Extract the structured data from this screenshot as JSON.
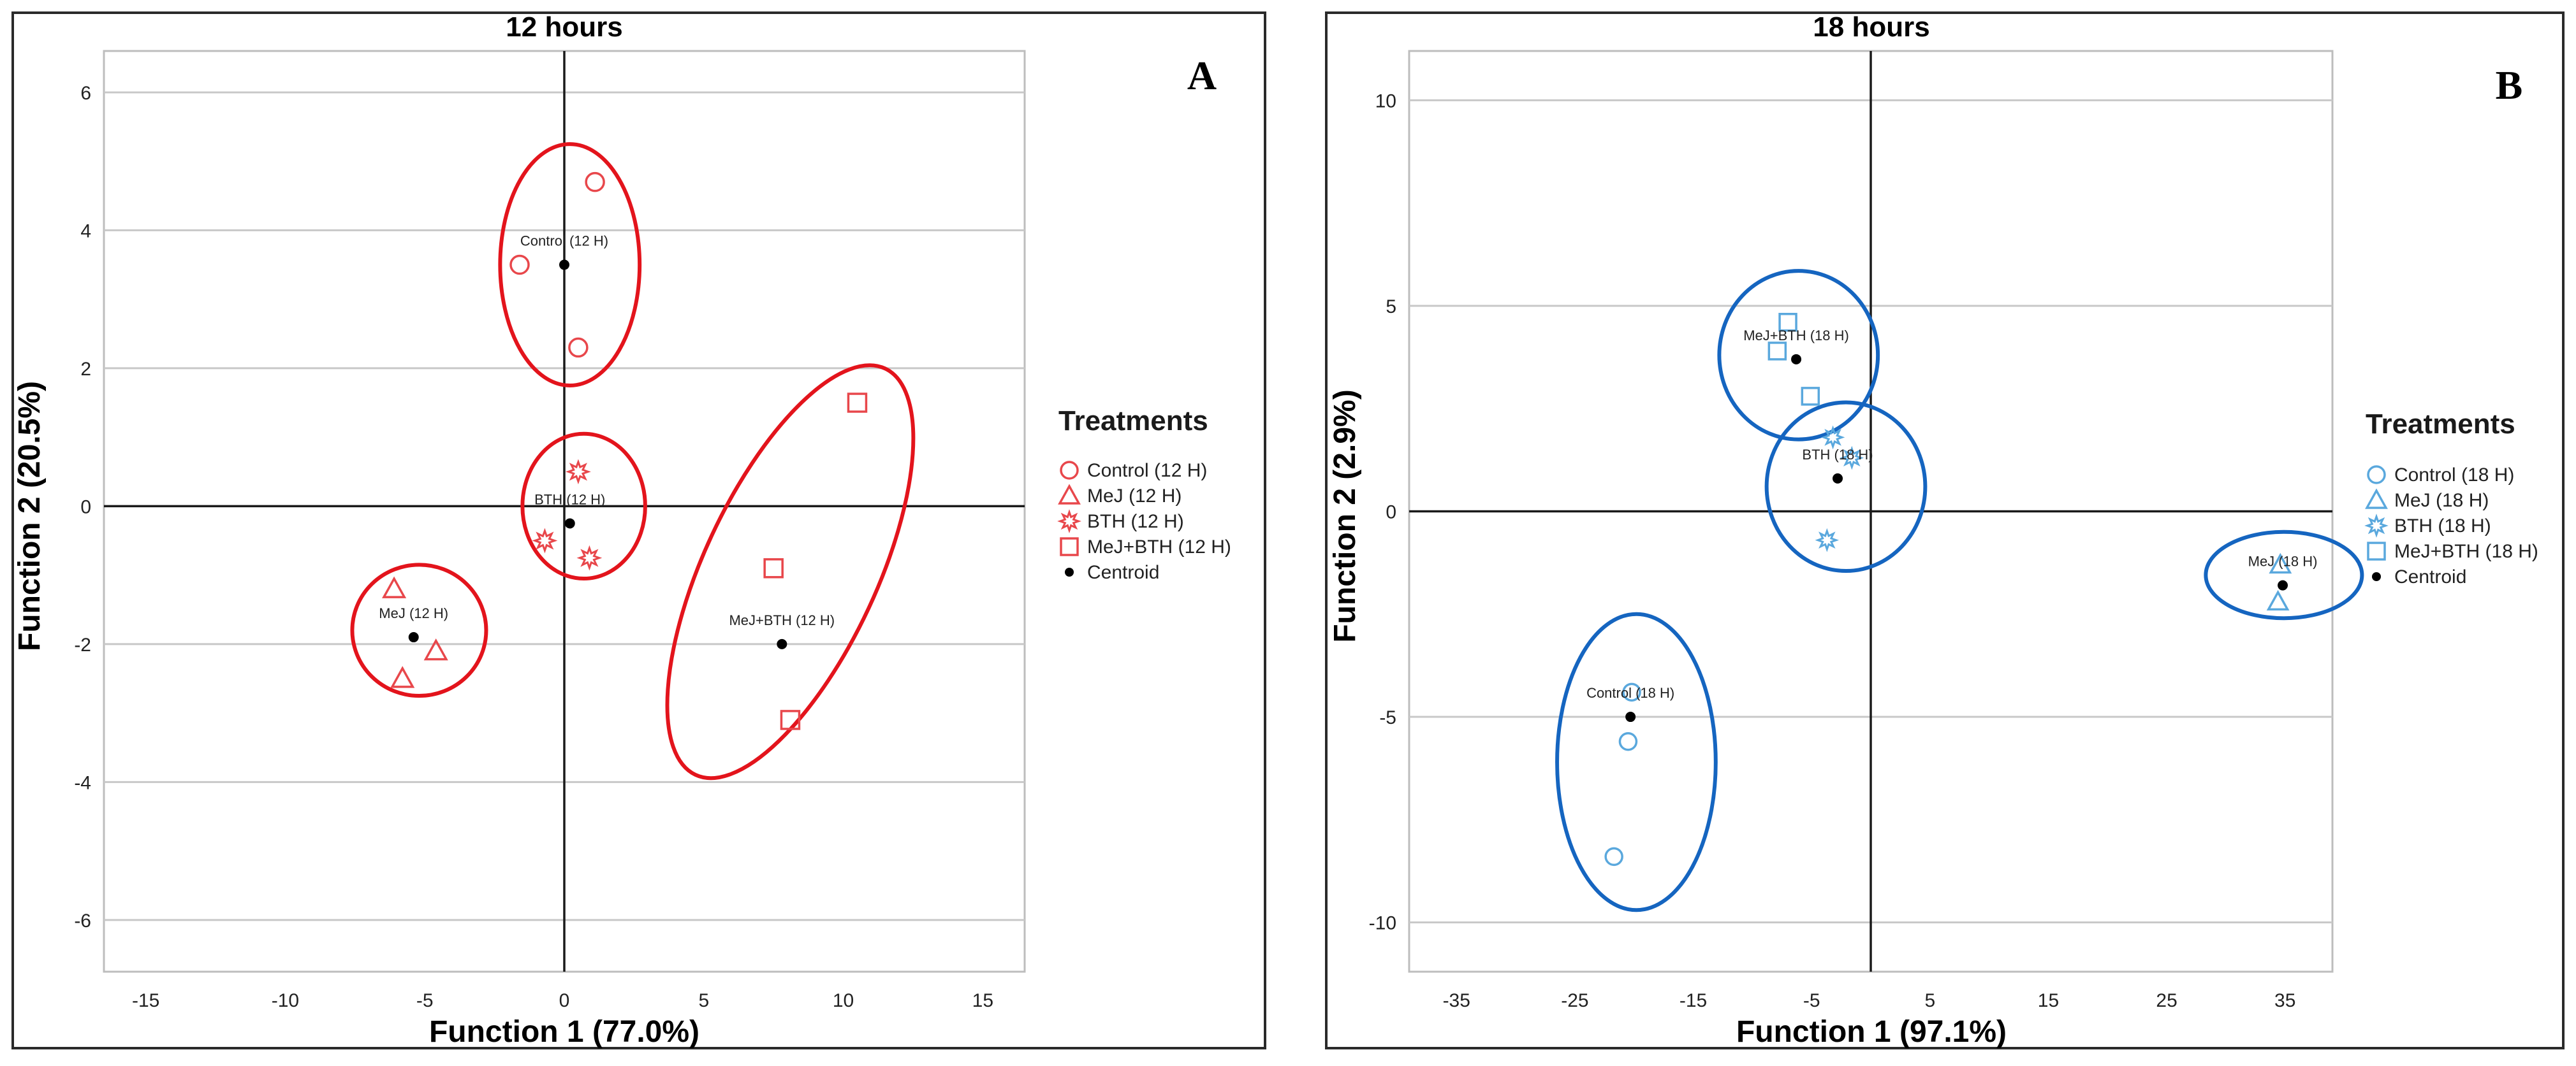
{
  "chart_data": [
    {
      "type": "scatter",
      "panel_letter": "A",
      "title": "12 hours",
      "xlabel": "Function 1 (77.0%)",
      "ylabel": "Function 2 (20.5%)",
      "xlim": [
        -16.5,
        16.5
      ],
      "ylim": [
        -6.75,
        6.6
      ],
      "xticks": [
        -15,
        -10,
        -5,
        0,
        5,
        10,
        15
      ],
      "yticks": [
        -6,
        -4,
        -2,
        0,
        2,
        4,
        6
      ],
      "grid": "horizontal",
      "legend_position": "right",
      "legend_title": "Treatments",
      "color": "#e8474b",
      "ellipse_color": "#e3141c",
      "series": [
        {
          "name": "Control (12 H)",
          "marker": "circle",
          "points": [
            [
              1.1,
              4.7
            ],
            [
              -1.6,
              3.5
            ],
            [
              0.5,
              2.3
            ]
          ]
        },
        {
          "name": "MeJ (12 H)",
          "marker": "triangle",
          "points": [
            [
              -6.1,
              -1.2
            ],
            [
              -4.6,
              -2.1
            ],
            [
              -5.8,
              -2.5
            ]
          ]
        },
        {
          "name": "BTH (12 H)",
          "marker": "star",
          "points": [
            [
              0.5,
              0.5
            ],
            [
              -0.7,
              -0.5
            ],
            [
              0.9,
              -0.75
            ]
          ]
        },
        {
          "name": "MeJ+BTH (12 H)",
          "marker": "square",
          "points": [
            [
              10.5,
              1.5
            ],
            [
              7.5,
              -0.9
            ],
            [
              8.1,
              -3.1
            ]
          ]
        }
      ],
      "centroids": [
        {
          "label": "Control (12 H)",
          "x": 0.0,
          "y": 3.5
        },
        {
          "label": "BTH (12 H)",
          "x": 0.2,
          "y": -0.25
        },
        {
          "label": "MeJ (12 H)",
          "x": -5.4,
          "y": -1.9
        },
        {
          "label": "MeJ+BTH (12 H)",
          "x": 7.8,
          "y": -2.0
        }
      ],
      "centroid_legend": "Centroid",
      "groups": [
        {
          "cx": 0.2,
          "cy": 3.5,
          "rx": 2.5,
          "ry": 1.75,
          "rot": 0
        },
        {
          "cx": 0.7,
          "cy": 0.0,
          "rx": 2.2,
          "ry": 1.05,
          "rot": 0
        },
        {
          "cx": -5.2,
          "cy": -1.8,
          "rx": 2.4,
          "ry": 0.95,
          "rot": 0
        },
        {
          "cx": 8.1,
          "cy": -0.95,
          "rx": 3.1,
          "ry": 3.25,
          "rot": 25
        }
      ]
    },
    {
      "type": "scatter",
      "panel_letter": "B",
      "title": "18 hours",
      "xlabel": "Function 1 (97.1%)",
      "ylabel": "Function 2 (2.9%)",
      "xlim": [
        -39,
        39
      ],
      "ylim": [
        -11.2,
        11.2
      ],
      "xticks": [
        -35,
        -25,
        -15,
        -5,
        5,
        15,
        25,
        35
      ],
      "yticks": [
        -10,
        -5,
        0,
        5,
        10
      ],
      "grid": "horizontal",
      "legend_position": "right",
      "legend_title": "Treatments",
      "color": "#5aa8dd",
      "ellipse_color": "#1565c0",
      "series": [
        {
          "name": "Control (18 H)",
          "marker": "circle",
          "points": [
            [
              -20.2,
              -4.4
            ],
            [
              -20.5,
              -5.6
            ],
            [
              -21.7,
              -8.4
            ]
          ]
        },
        {
          "name": "MeJ (18 H)",
          "marker": "triangle",
          "points": [
            [
              34.6,
              -1.3
            ],
            [
              34.4,
              -2.2
            ]
          ]
        },
        {
          "name": "BTH (18 H)",
          "marker": "star",
          "points": [
            [
              -3.2,
              1.8
            ],
            [
              -1.6,
              1.3
            ],
            [
              -3.7,
              -0.7
            ]
          ]
        },
        {
          "name": "MeJ+BTH (18 H)",
          "marker": "square",
          "points": [
            [
              -7.0,
              4.6
            ],
            [
              -7.9,
              3.9
            ],
            [
              -5.1,
              2.8
            ]
          ]
        }
      ],
      "centroids": [
        {
          "label": "MeJ+BTH (18 H)",
          "x": -6.3,
          "y": 3.7
        },
        {
          "label": "BTH (18 H)",
          "x": -2.8,
          "y": 0.8
        },
        {
          "label": "MeJ (18 H)",
          "x": 34.8,
          "y": -1.8
        },
        {
          "label": "Control (18 H)",
          "x": -20.3,
          "y": -5.0
        }
      ],
      "centroid_legend": "Centroid",
      "groups": [
        {
          "cx": -6.1,
          "cy": 3.8,
          "rx": 6.7,
          "ry": 2.05,
          "rot": 0
        },
        {
          "cx": -2.1,
          "cy": 0.6,
          "rx": 6.7,
          "ry": 2.05,
          "rot": 0
        },
        {
          "cx": 34.9,
          "cy": -1.55,
          "rx": 6.6,
          "ry": 1.05,
          "rot": 0
        },
        {
          "cx": -19.8,
          "cy": -6.1,
          "rx": 6.7,
          "ry": 3.6,
          "rot": 0
        }
      ]
    }
  ]
}
